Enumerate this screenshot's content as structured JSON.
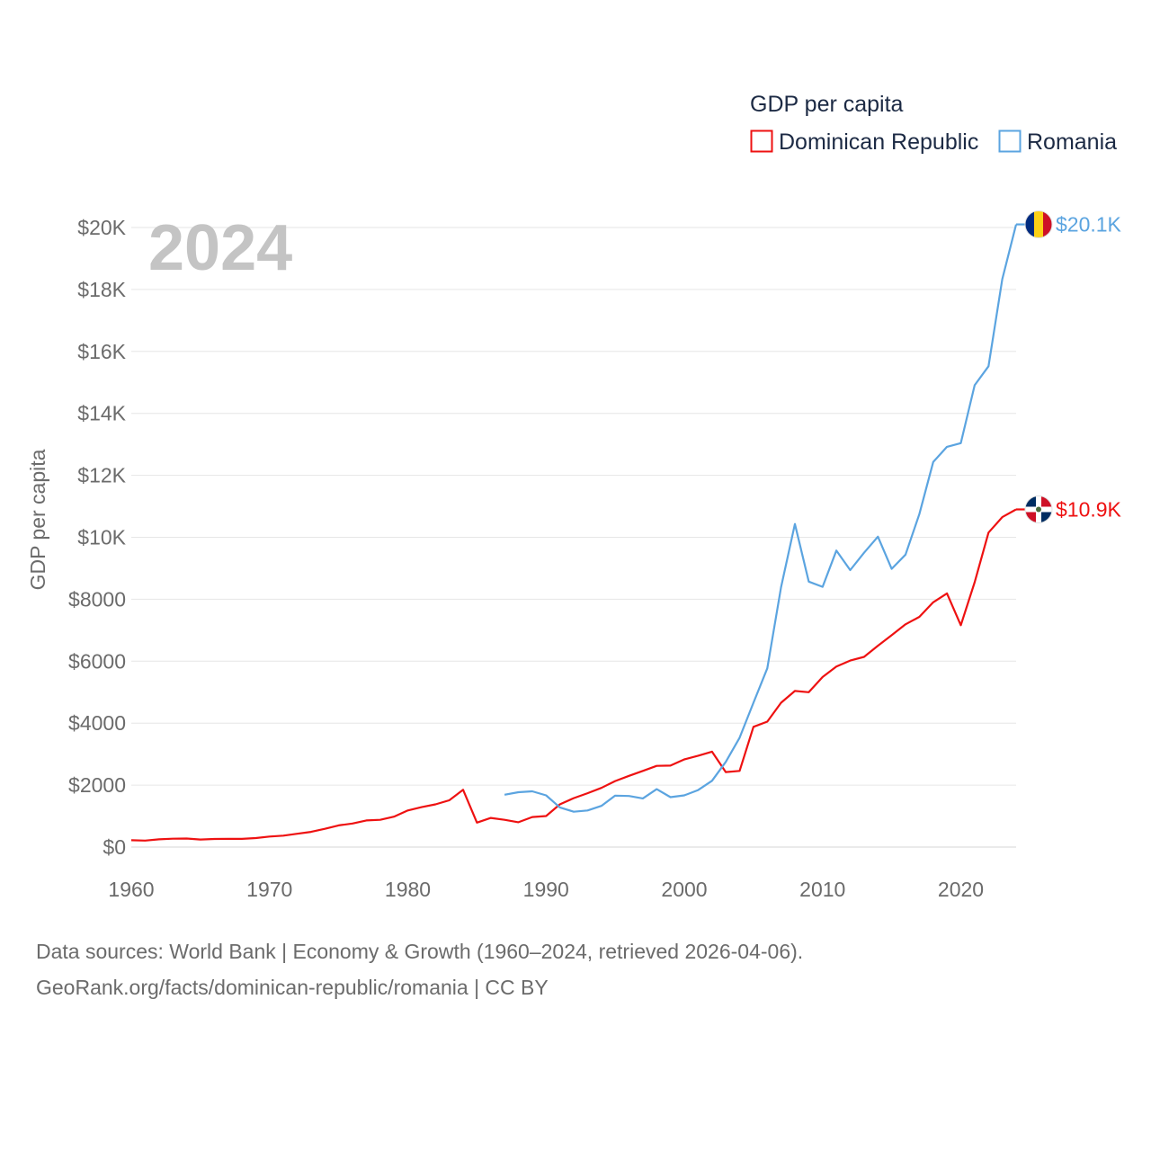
{
  "chart_data": {
    "type": "line",
    "ylabel": "GDP per capita",
    "xlim": [
      1960,
      2024
    ],
    "ylim": [
      0,
      20000
    ],
    "x_ticks": [
      1960,
      1970,
      1980,
      1990,
      2000,
      2010,
      2020
    ],
    "x_tick_labels": [
      "1960",
      "1970",
      "1980",
      "1990",
      "2000",
      "2010",
      "2020"
    ],
    "y_ticks": [
      0,
      2000,
      4000,
      6000,
      8000,
      10000,
      12000,
      14000,
      16000,
      18000,
      20000
    ],
    "y_tick_labels": [
      "$0",
      "$2000",
      "$4000",
      "$6000",
      "$8000",
      "$10K",
      "$12K",
      "$14K",
      "$16K",
      "$18K",
      "$20K"
    ],
    "grid": true,
    "year_label": "2024",
    "legend": {
      "title": "GDP per capita",
      "position": "top-right"
    },
    "series": [
      {
        "name": "Dominican Republic",
        "color": "#ee1111",
        "end_label": "$10.9K",
        "flag": "dominican-republic-flag-icon",
        "x": [
          1960,
          1961,
          1962,
          1963,
          1964,
          1965,
          1966,
          1967,
          1968,
          1969,
          1970,
          1971,
          1972,
          1973,
          1974,
          1975,
          1976,
          1977,
          1978,
          1979,
          1980,
          1981,
          1982,
          1983,
          1984,
          1985,
          1986,
          1987,
          1988,
          1989,
          1990,
          1991,
          1992,
          1993,
          1994,
          1995,
          1996,
          1997,
          1998,
          1999,
          2000,
          2001,
          2002,
          2003,
          2004,
          2005,
          2006,
          2007,
          2008,
          2009,
          2010,
          2011,
          2012,
          2013,
          2014,
          2015,
          2016,
          2017,
          2018,
          2019,
          2020,
          2021,
          2022,
          2023,
          2024
        ],
        "values": [
          220,
          210,
          250,
          270,
          275,
          245,
          260,
          265,
          265,
          290,
          340,
          370,
          430,
          490,
          590,
          700,
          760,
          860,
          880,
          980,
          1180,
          1290,
          1380,
          1510,
          1850,
          790,
          940,
          880,
          800,
          970,
          1000,
          1380,
          1580,
          1740,
          1910,
          2130,
          2300,
          2460,
          2620,
          2630,
          2830,
          2950,
          3080,
          2420,
          2460,
          3880,
          4050,
          4660,
          5040,
          5000,
          5490,
          5830,
          6020,
          6140,
          6500,
          6840,
          7190,
          7430,
          7900,
          8190,
          7160,
          8550,
          10150,
          10650,
          10900
        ]
      },
      {
        "name": "Romania",
        "color": "#5ba4e0",
        "end_label": "$20.1K",
        "flag": "romania-flag-icon",
        "x": [
          1987,
          1988,
          1989,
          1990,
          1991,
          1992,
          1993,
          1994,
          1995,
          1996,
          1997,
          1998,
          1999,
          2000,
          2001,
          2002,
          2003,
          2004,
          2005,
          2006,
          2007,
          2008,
          2009,
          2010,
          2011,
          2012,
          2013,
          2014,
          2015,
          2016,
          2017,
          2018,
          2019,
          2020,
          2021,
          2022,
          2023,
          2024
        ],
        "values": [
          1690,
          1770,
          1800,
          1670,
          1280,
          1140,
          1180,
          1330,
          1660,
          1650,
          1570,
          1870,
          1610,
          1670,
          1840,
          2140,
          2750,
          3530,
          4660,
          5770,
          8390,
          10430,
          8570,
          8400,
          9570,
          8940,
          9500,
          10020,
          8980,
          9440,
          10750,
          12430,
          12920,
          13040,
          14910,
          15520,
          18330,
          20100
        ]
      }
    ]
  },
  "footer": {
    "line1": "Data sources: World Bank | Economy & Growth (1960–2024, retrieved 2026-04-06).",
    "line2": "GeoRank.org/facts/dominican-republic/romania | CC BY"
  }
}
